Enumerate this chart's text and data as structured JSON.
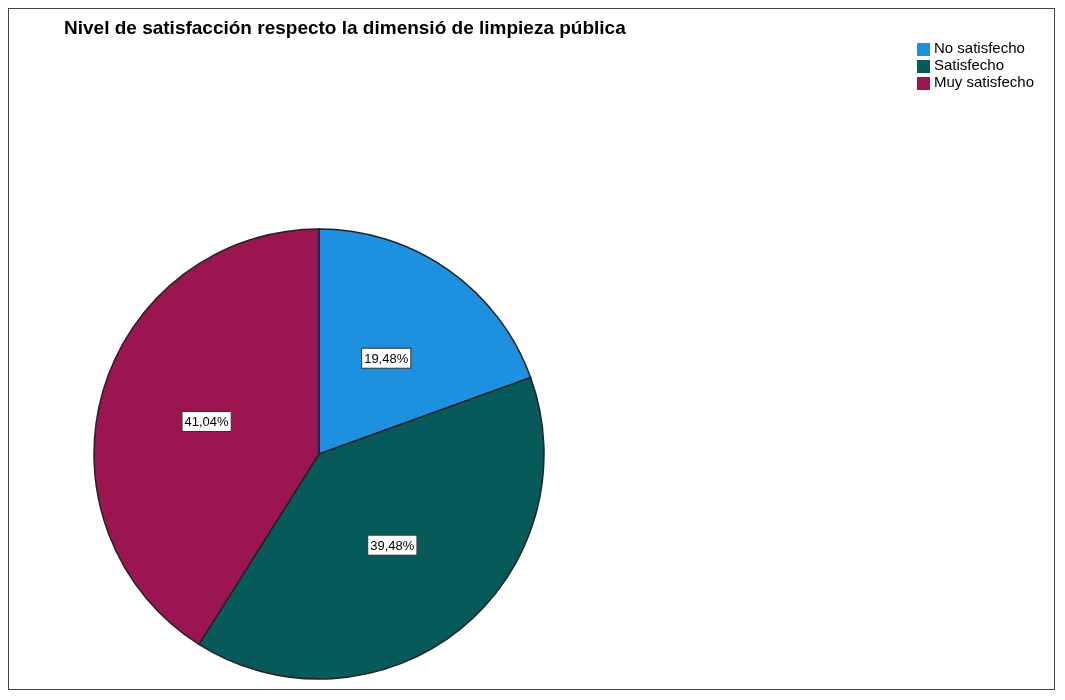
{
  "chart_data": {
    "type": "pie",
    "title": "Nivel de satisfacción respecto  la dimensió de limpieza pública",
    "categories": [
      "No satisfecho",
      "Satisfecho",
      "Muy satisfecho"
    ],
    "values": [
      19.48,
      39.48,
      41.04
    ],
    "value_labels": [
      "19,48%",
      "39,48%",
      "41,04%"
    ],
    "colors": [
      "#1e90e0",
      "#075a5a",
      "#9b1551"
    ],
    "legend": "top right"
  }
}
